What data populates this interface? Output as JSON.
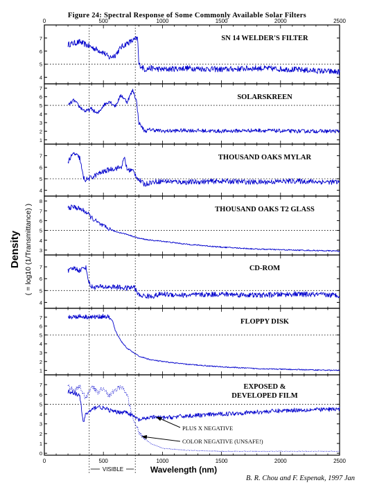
{
  "figure": {
    "title": "Figure 24:  Spectral Response of Some Commonly Available Solar Filters",
    "credit": "B. R. Chou and F. Espenak, 1997 Jan",
    "y_label_main": "Density",
    "y_label_sub": "( = log10 (1/Transmittance) )",
    "visible_band_label": "VISIBLE",
    "colors": {
      "line": "#0000cc",
      "axis": "#000000",
      "grid": "#000000"
    }
  },
  "chart_data": [
    {
      "type": "line",
      "title": "SN 14 WELDER'S FILTER",
      "xlabel": "Wavelength (nm)",
      "xlim": [
        0,
        2500
      ],
      "ylim": [
        3.5,
        8
      ],
      "yticks": [
        4,
        5,
        6,
        7
      ],
      "hline": 5,
      "vlines": [
        380,
        770
      ],
      "xticks": [
        0,
        500,
        1000,
        1500,
        2000,
        2500
      ],
      "series": [
        {
          "style": "solid",
          "x": [
            200,
            300,
            350,
            400,
            450,
            500,
            550,
            600,
            650,
            700,
            750,
            790,
            800,
            850,
            900,
            1000,
            1200,
            1500,
            1800,
            2100,
            2500
          ],
          "y": [
            6.5,
            6.7,
            6.5,
            6.3,
            6.1,
            5.9,
            5.5,
            5.7,
            6.3,
            6.6,
            6.8,
            7.0,
            5.0,
            4.6,
            4.7,
            4.6,
            4.7,
            4.6,
            4.7,
            4.6,
            4.4
          ]
        }
      ]
    },
    {
      "type": "line",
      "title": "SOLARSKREEN",
      "xlim": [
        0,
        2500
      ],
      "ylim": [
        0.5,
        7.5
      ],
      "yticks": [
        1,
        2,
        3,
        4,
        5,
        6,
        7
      ],
      "hline": 5,
      "vlines": [
        380,
        770
      ],
      "xticks": [
        0,
        500,
        1000,
        1500,
        2000,
        2500
      ],
      "series": [
        {
          "style": "solid",
          "x": [
            200,
            250,
            300,
            350,
            400,
            450,
            500,
            550,
            600,
            650,
            700,
            750,
            780,
            800,
            850,
            900,
            1000,
            1200,
            1500,
            1800,
            2100,
            2500
          ],
          "y": [
            5.0,
            5.6,
            4.8,
            4.3,
            4.6,
            4.0,
            5.0,
            5.5,
            4.9,
            6.2,
            5.4,
            6.8,
            5.5,
            3.0,
            2.0,
            2.2,
            2.0,
            2.1,
            2.0,
            2.1,
            2.0,
            2.0
          ]
        }
      ]
    },
    {
      "type": "line",
      "title": "THOUSAND OAKS MYLAR",
      "xlim": [
        0,
        2500
      ],
      "ylim": [
        3.5,
        8
      ],
      "yticks": [
        4,
        5,
        6,
        7
      ],
      "hline": 5,
      "vlines": [
        380,
        770
      ],
      "xticks": [
        0,
        500,
        1000,
        1500,
        2000,
        2500
      ],
      "series": [
        {
          "style": "solid",
          "x": [
            200,
            250,
            300,
            330,
            350,
            400,
            450,
            500,
            550,
            600,
            650,
            680,
            700,
            750,
            800,
            850,
            900,
            1000,
            1200,
            1500,
            1800,
            2100,
            2500
          ],
          "y": [
            6.5,
            7.2,
            6.8,
            5.1,
            4.9,
            5.1,
            5.4,
            5.6,
            5.8,
            5.9,
            6.0,
            6.8,
            5.8,
            5.7,
            4.9,
            4.5,
            4.7,
            4.8,
            4.7,
            4.8,
            4.7,
            4.8,
            4.7
          ]
        }
      ]
    },
    {
      "type": "line",
      "title": "THOUSAND OAKS T2 GLASS",
      "xlim": [
        0,
        2500
      ],
      "ylim": [
        2.5,
        8.5
      ],
      "yticks": [
        3,
        4,
        5,
        6,
        7,
        8
      ],
      "hline": 5,
      "vlines": [
        380,
        770
      ],
      "xticks": [
        0,
        500,
        1000,
        1500,
        2000,
        2500
      ],
      "series": [
        {
          "style": "solid",
          "x": [
            200,
            250,
            300,
            350,
            400,
            450,
            500,
            600,
            700,
            800,
            900,
            1000,
            1200,
            1500,
            1800,
            2100,
            2500
          ],
          "y": [
            7.3,
            7.4,
            7.2,
            6.9,
            6.3,
            5.8,
            5.4,
            4.9,
            4.6,
            4.2,
            4.0,
            3.9,
            3.6,
            3.3,
            3.1,
            3.0,
            2.9
          ]
        }
      ]
    },
    {
      "type": "line",
      "title": "CD-ROM",
      "xlim": [
        0,
        2500
      ],
      "ylim": [
        3.5,
        8
      ],
      "yticks": [
        4,
        5,
        6,
        7
      ],
      "hline": 5,
      "vlines": [
        380,
        770
      ],
      "xticks": [
        0,
        500,
        1000,
        1500,
        2000,
        2500
      ],
      "series": [
        {
          "style": "solid",
          "x": [
            200,
            250,
            300,
            350,
            380,
            400,
            500,
            600,
            700,
            760,
            800,
            900,
            1000,
            1200,
            1500,
            1800,
            2100,
            2500
          ],
          "y": [
            6.6,
            6.9,
            6.7,
            7.0,
            5.6,
            5.3,
            5.3,
            5.3,
            5.2,
            5.3,
            4.6,
            4.5,
            4.7,
            4.6,
            4.7,
            4.6,
            4.7,
            4.6
          ]
        }
      ]
    },
    {
      "type": "line",
      "title": "FLOPPY DISK",
      "xlim": [
        0,
        2500
      ],
      "ylim": [
        0.5,
        8
      ],
      "yticks": [
        1,
        2,
        3,
        4,
        5,
        6,
        7
      ],
      "hline": 5,
      "vlines": [
        380,
        770
      ],
      "xticks": [
        0,
        500,
        1000,
        1500,
        2000,
        2500
      ],
      "series": [
        {
          "style": "solid",
          "x": [
            200,
            300,
            400,
            500,
            550,
            580,
            600,
            650,
            700,
            800,
            900,
            1000,
            1200,
            1500,
            1800,
            2100,
            2500
          ],
          "y": [
            7.0,
            7.1,
            7.0,
            7.1,
            7.0,
            6.5,
            5.5,
            4.3,
            3.5,
            2.6,
            2.2,
            2.0,
            1.7,
            1.4,
            1.2,
            1.1,
            1.0
          ]
        }
      ]
    },
    {
      "type": "line",
      "title": "EXPOSED & DEVELOPED FILM",
      "xlim": [
        0,
        2500
      ],
      "ylim": [
        -0.2,
        8
      ],
      "yticks": [
        0,
        1,
        2,
        3,
        4,
        5,
        6,
        7
      ],
      "hline": 5,
      "vlines": [
        380,
        770
      ],
      "xticks": [
        0,
        500,
        1000,
        1500,
        2000,
        2500
      ],
      "xticklabels_bottom": true,
      "annotations": [
        "PLUS X NEGATIVE",
        "COLOR NEGATIVE (UNSAFE!)"
      ],
      "series": [
        {
          "style": "solid",
          "x": [
            200,
            250,
            300,
            330,
            350,
            400,
            450,
            500,
            600,
            700,
            750,
            800,
            850,
            900,
            1000,
            1200,
            1500,
            1800,
            2100,
            2500
          ],
          "y": [
            6.3,
            6.2,
            5.8,
            3.1,
            4.0,
            4.4,
            4.8,
            4.6,
            4.2,
            4.2,
            3.8,
            3.4,
            3.5,
            3.7,
            3.6,
            3.8,
            4.0,
            4.2,
            4.4,
            4.5
          ]
        },
        {
          "style": "dotted",
          "x": [
            200,
            250,
            300,
            350,
            400,
            450,
            500,
            550,
            600,
            650,
            700,
            750,
            800,
            850,
            900,
            1000,
            1200,
            1500,
            2000,
            2500
          ],
          "y": [
            6.8,
            6.5,
            6.8,
            5.6,
            6.9,
            6.2,
            6.7,
            5.8,
            6.5,
            6.8,
            6.0,
            3.5,
            2.2,
            1.5,
            1.0,
            0.5,
            0.3,
            0.2,
            0.2,
            0.2
          ]
        }
      ]
    }
  ]
}
